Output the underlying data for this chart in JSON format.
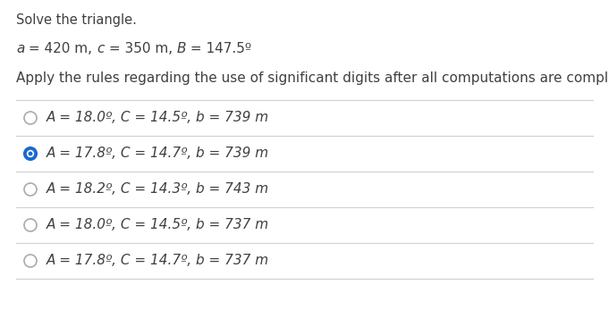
{
  "title": "Solve the triangle.",
  "given_parts": [
    {
      "text": "a",
      "italic": true
    },
    {
      "text": " = 420 m, ",
      "italic": false
    },
    {
      "text": "c",
      "italic": true
    },
    {
      "text": " = 350 m, ",
      "italic": false
    },
    {
      "text": "B",
      "italic": true
    },
    {
      "text": " = 147.5",
      "italic": false
    },
    {
      "text": "º",
      "italic": false,
      "super": true
    }
  ],
  "instruction": "Apply the rules regarding the use of significant digits after all computations are complete.",
  "options": [
    {
      "label": "A = 18.0º, C = 14.5º, b = 739 m",
      "selected": false
    },
    {
      "label": "A = 17.8º, C = 14.7º, b = 739 m",
      "selected": true
    },
    {
      "label": "A = 18.2º, C = 14.3º, b = 743 m",
      "selected": false
    },
    {
      "label": "A = 18.0º, C = 14.5º, b = 737 m",
      "selected": false
    },
    {
      "label": "A = 17.8º, C = 14.7º, b = 737 m",
      "selected": false
    }
  ],
  "bg_color": "#ffffff",
  "text_color": "#404040",
  "radio_unselected_color": "#aaaaaa",
  "radio_selected_outer": "#1a6acd",
  "radio_selected_inner": "#ffffff",
  "radio_selected_dot": "#1a6acd",
  "line_color": "#d0d0d0",
  "title_fontsize": 10.5,
  "given_fontsize": 11,
  "instruction_fontsize": 11,
  "option_fontsize": 11
}
